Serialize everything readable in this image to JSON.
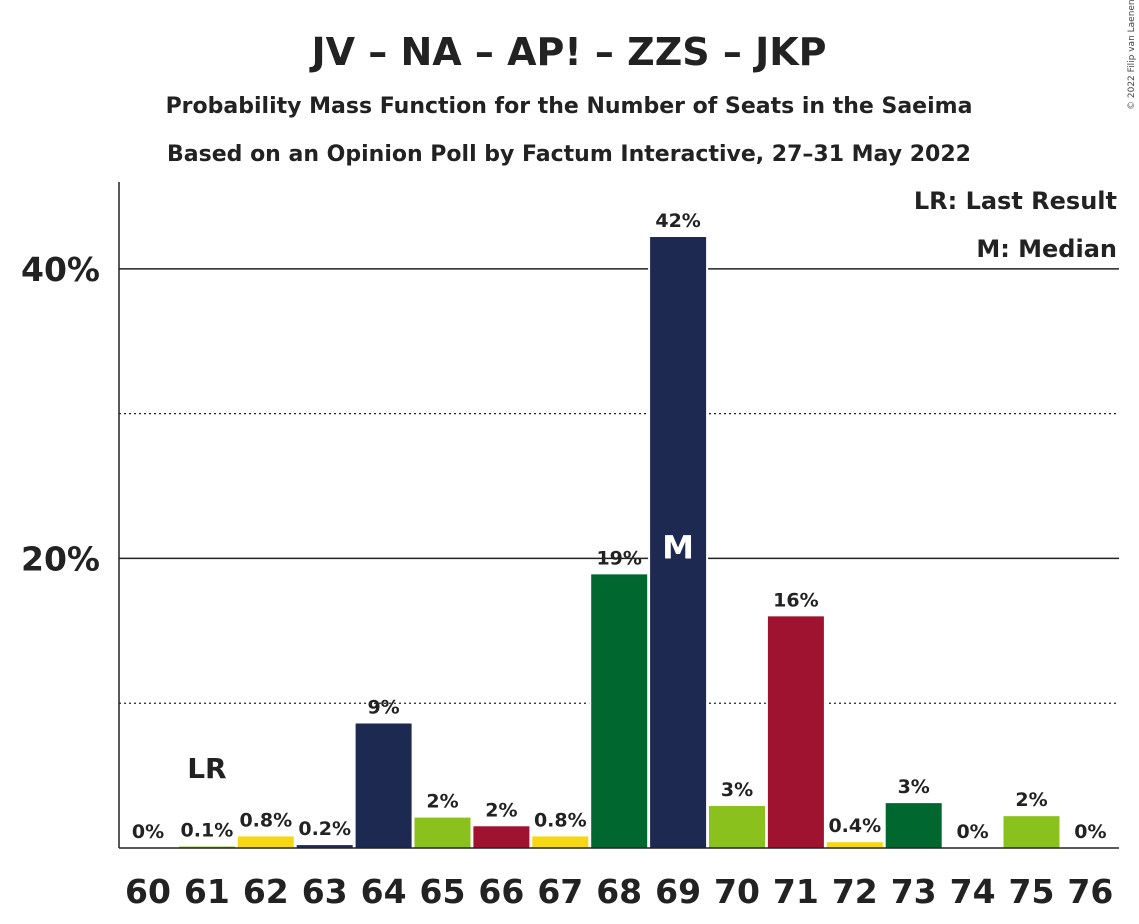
{
  "chart_data": {
    "type": "bar",
    "title": "JV – NA – AP! – ZZS – JKP",
    "subtitle_1": "Probability Mass Function for the Number of Seats in the Saeima",
    "subtitle_2": "Based on an Opinion Poll by Factum Interactive, 27–31 May 2022",
    "credit": "© 2022 Filip van Laenen",
    "legend": {
      "lr": "LR: Last Result",
      "median": "M: Median"
    },
    "lr_label": "LR",
    "median_label": "M",
    "last_result_seat": 61,
    "median_seat": 69,
    "ylim": [
      0,
      46
    ],
    "yticks": [
      {
        "value": 20,
        "label": "20%"
      },
      {
        "value": 40,
        "label": "40%"
      }
    ],
    "minor_grid": [
      10,
      30
    ],
    "categories": [
      "60",
      "61",
      "62",
      "63",
      "64",
      "65",
      "66",
      "67",
      "68",
      "69",
      "70",
      "71",
      "72",
      "73",
      "74",
      "75",
      "76"
    ],
    "values": [
      0,
      0.1,
      0.8,
      0.2,
      8.6,
      2.1,
      1.5,
      0.8,
      18.9,
      42.2,
      2.9,
      16.0,
      0.4,
      3.1,
      0,
      2.2,
      0
    ],
    "labels": [
      "0%",
      "0.1%",
      "0.8%",
      "0.2%",
      "9%",
      "2%",
      "2%",
      "0.8%",
      "19%",
      "42%",
      "3%",
      "16%",
      "0.4%",
      "3%",
      "0%",
      "2%",
      "0%"
    ],
    "colors": [
      "#8ac11d",
      "#8ac11d",
      "#f6d714",
      "#1e2952",
      "#1e2952",
      "#8ac11d",
      "#a01330",
      "#f6d714",
      "#00682f",
      "#1e2952",
      "#8ac11d",
      "#a01330",
      "#f6d714",
      "#00682f",
      "#00682f",
      "#8ac11d",
      "#8ac11d"
    ]
  }
}
